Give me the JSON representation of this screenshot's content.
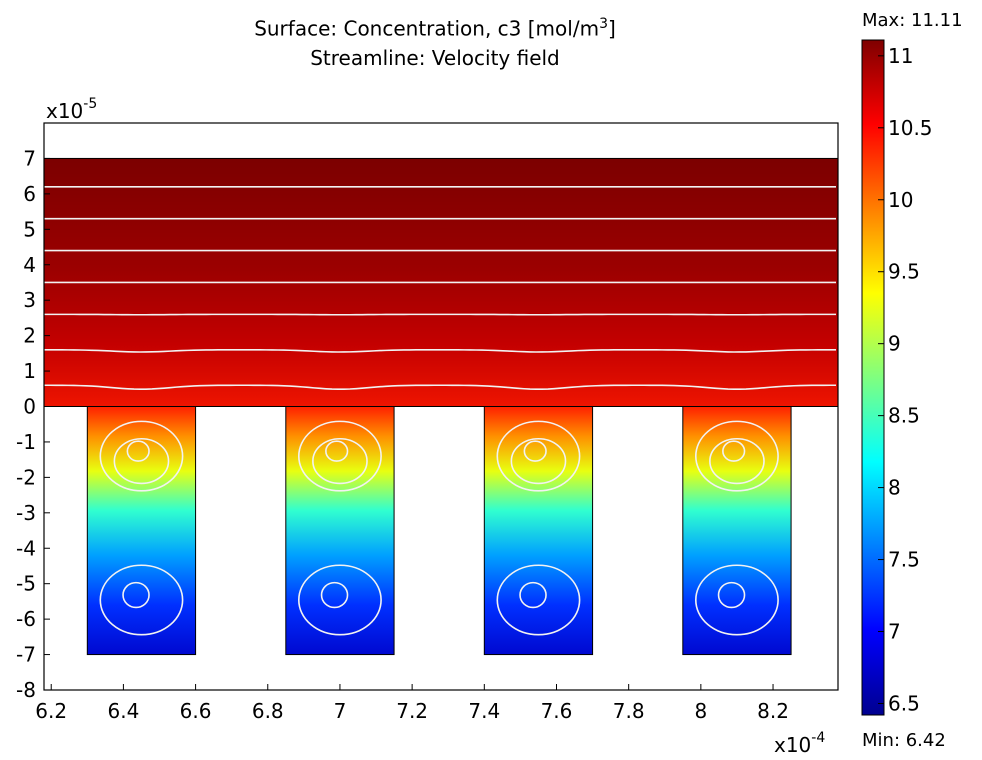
{
  "chart_data": {
    "type": "heatmap",
    "title": "Surface: Concentration, c3 [mol/m",
    "title_sup": "3",
    "title_suffix": "]",
    "subtitle": "Streamline: Velocity field",
    "x_exponent_base": "x10",
    "x_exponent": "-4",
    "y_exponent_base": "x10",
    "y_exponent": "-5",
    "xlim": [
      6.18,
      8.38
    ],
    "ylim": [
      -8,
      8
    ],
    "x_ticks": [
      6.2,
      6.4,
      6.6,
      6.8,
      7,
      7.2,
      7.4,
      7.6,
      7.8,
      8,
      8.2
    ],
    "x_tick_labels": [
      "6.2",
      "6.4",
      "6.6",
      "6.8",
      "7",
      "7.2",
      "7.4",
      "7.6",
      "7.8",
      "8",
      "8.2"
    ],
    "y_ticks": [
      7,
      6,
      5,
      4,
      3,
      2,
      1,
      0,
      -1,
      -2,
      -3,
      -4,
      -5,
      -6,
      -7,
      -8
    ],
    "y_tick_labels": [
      "7",
      "6",
      "5",
      "4",
      "3",
      "2",
      "1",
      "0",
      "-1",
      "-2",
      "-3",
      "-4",
      "-5",
      "-6",
      "-7",
      "-8"
    ],
    "channel": {
      "x": [
        6.18,
        8.38
      ],
      "y": [
        0,
        7
      ]
    },
    "trenches": [
      {
        "x": [
          6.3,
          6.6
        ],
        "y": [
          -7,
          0
        ]
      },
      {
        "x": [
          6.85,
          7.15
        ],
        "y": [
          -7,
          0
        ]
      },
      {
        "x": [
          7.4,
          7.7
        ],
        "y": [
          -7,
          0
        ]
      },
      {
        "x": [
          7.95,
          8.25
        ],
        "y": [
          -7,
          0
        ]
      }
    ],
    "streamlines_y": [
      0.6,
      1.6,
      2.6,
      3.5,
      4.4,
      5.3,
      6.2
    ],
    "colorbar": {
      "max_label": "Max: 11.11",
      "min_label": "Min: 6.42",
      "max": 11.11,
      "min": 6.42,
      "ticks": [
        11,
        10.5,
        10,
        9.5,
        9,
        8.5,
        8,
        7.5,
        7,
        6.5
      ],
      "tick_labels": [
        "11",
        "10.5",
        "10",
        "9.5",
        "9",
        "8.5",
        "8",
        "7.5",
        "7",
        "6.5"
      ],
      "colormap": [
        "#00008f",
        "#0000ff",
        "#00ffff",
        "#ffff00",
        "#ff0000",
        "#7f0000"
      ]
    },
    "grid": false
  }
}
